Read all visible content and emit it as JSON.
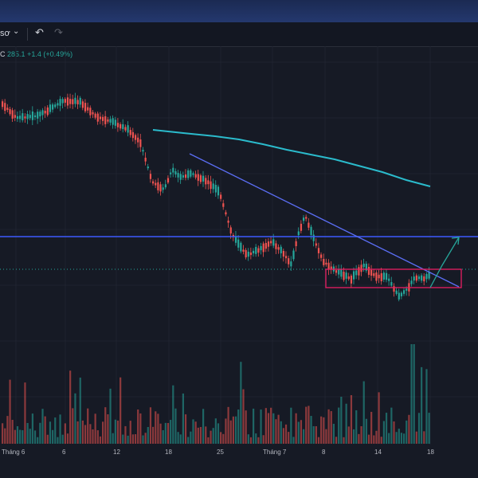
{
  "toolbar": {
    "menu_label": "sơ",
    "menu_chevron": "chevron-down-icon",
    "undo_icon": "undo-icon",
    "redo_icon": "redo-icon"
  },
  "legend": {
    "symbol_tail": "C",
    "last_price": "285.1",
    "change": "+1.4",
    "change_pct": "(+0.49%)"
  },
  "colors": {
    "up": "#26a69a",
    "down": "#ef5350",
    "ma": "#2bbbcc",
    "trendline": "#5b6ef5",
    "horizontal_line": "#3d5afe",
    "box": "#e91e63"
  },
  "chart_data": {
    "type": "candlestick",
    "x_tick_labels": [
      "Tháng 6",
      "6",
      "12",
      "18",
      "25",
      "Tháng 7",
      "8",
      "14",
      "18"
    ],
    "last_value": 285.1,
    "change": 1.4,
    "change_pct": 0.49,
    "candles_shown": 172,
    "volume_bars": true,
    "overlays": [
      "moving-average",
      "descending-trendline",
      "horizontal-level",
      "consolidation-box",
      "projection-arrow"
    ]
  }
}
